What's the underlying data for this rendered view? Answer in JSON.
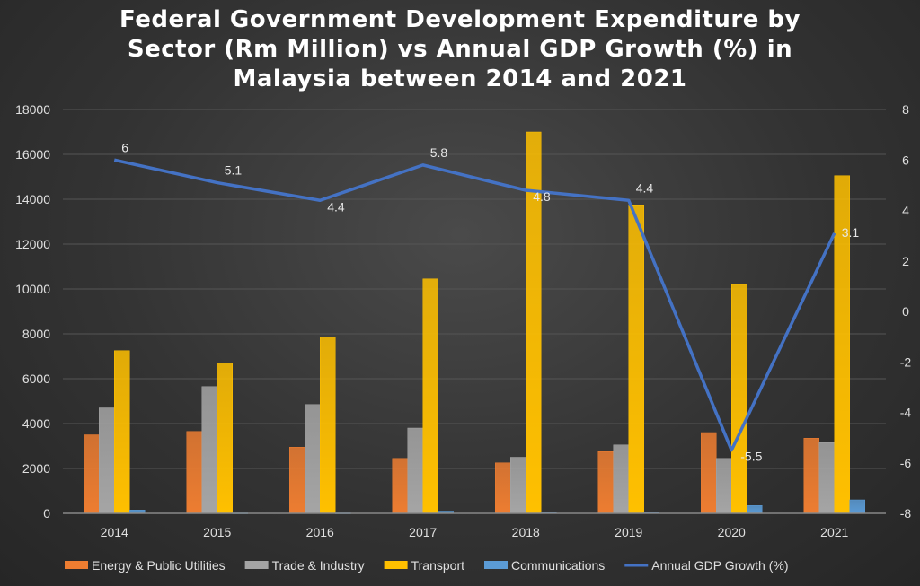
{
  "chart_data": {
    "type": "bar+line",
    "title_lines": [
      "Federal Government Development Expenditure by",
      "Sector (Rm Million) vs Annual GDP Growth (%) in",
      "Malaysia between 2014 and 2021"
    ],
    "categories": [
      "2014",
      "2015",
      "2016",
      "2017",
      "2018",
      "2019",
      "2020",
      "2021"
    ],
    "y_left": {
      "min": 0,
      "max": 18000,
      "step": 2000,
      "ticks": [
        "0",
        "2000",
        "4000",
        "6000",
        "8000",
        "10000",
        "12000",
        "14000",
        "16000",
        "18000"
      ]
    },
    "y_right": {
      "min": -8,
      "max": 8,
      "step": 2,
      "ticks": [
        "-8",
        "-6",
        "-4",
        "-2",
        "0",
        "2",
        "4",
        "6",
        "8"
      ]
    },
    "grid": true,
    "legend_position": "bottom",
    "series": [
      {
        "name": "Energy & Public Utilities",
        "type": "bar",
        "axis": "left",
        "color": "#ED7D31",
        "values": [
          3500,
          3650,
          2950,
          2450,
          2250,
          2750,
          3600,
          3350
        ]
      },
      {
        "name": "Trade & Industry",
        "type": "bar",
        "axis": "left",
        "color": "#A5A5A5",
        "values": [
          4700,
          5650,
          4850,
          3800,
          2500,
          3050,
          2450,
          3150
        ]
      },
      {
        "name": "Transport",
        "type": "bar",
        "axis": "left",
        "color": "#FFC000",
        "values": [
          7250,
          6700,
          7850,
          10450,
          17000,
          13750,
          10200,
          15050
        ]
      },
      {
        "name": "Communications",
        "type": "bar",
        "axis": "left",
        "color": "#5B9BD5",
        "values": [
          150,
          20,
          20,
          100,
          50,
          50,
          350,
          600
        ]
      },
      {
        "name": "Annual GDP Growth (%)",
        "type": "line",
        "axis": "right",
        "color": "#4472C4",
        "values": [
          6,
          5.1,
          4.4,
          5.8,
          4.8,
          4.4,
          -5.5,
          3.1
        ],
        "labels": [
          "6",
          "5.1",
          "4.4",
          "5.8",
          "4.8",
          "4.4",
          "-5.5",
          "3.1"
        ]
      }
    ]
  }
}
